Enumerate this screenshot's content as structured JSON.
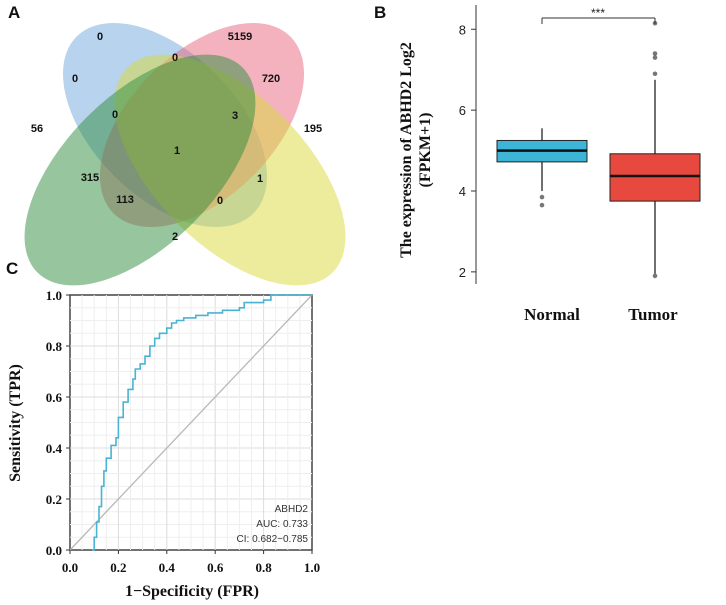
{
  "panels": {
    "a": "A",
    "b": "B",
    "c": "C"
  },
  "venn": {
    "sets": [
      {
        "name": "blue-set",
        "color": "#6fa8dc"
      },
      {
        "name": "pink-set",
        "color": "#e8657d"
      },
      {
        "name": "yellow-set",
        "color": "#d9d93a"
      },
      {
        "name": "green-set",
        "color": "#2e8b3e"
      }
    ],
    "counts": {
      "blue_only": "0",
      "pink_only": "5159",
      "green_only": "56",
      "yellow_only": "195",
      "blue_pink": "0",
      "blue_green": "0",
      "pink_yellow": "720",
      "blue_pink_green": "0",
      "blue_pink_yellow": "3",
      "all_four": "1",
      "pink_green": "315",
      "blue_yellow": "1",
      "pink_green_yellow": "113",
      "blue_green_yellow": "0",
      "green_yellow": "2"
    }
  },
  "chart_data": [
    {
      "type": "box",
      "title": "",
      "ylabel_line1": "The expression of ABHD2 Log2",
      "ylabel_line2": "(FPKM+1)",
      "xlabel": "",
      "ylim": [
        1.7,
        8.6
      ],
      "yticks": [
        "2",
        "4",
        "6",
        "8"
      ],
      "significance": "***",
      "groups": [
        {
          "name": "Normal",
          "color": "#3db5d6",
          "q1": 4.72,
          "median": 5.0,
          "q3": 5.25,
          "whisker_low": 4.0,
          "whisker_high": 5.55,
          "outliers": [
            3.85,
            3.65
          ]
        },
        {
          "name": "Tumor",
          "color": "#e8493f",
          "q1": 3.75,
          "median": 4.37,
          "q3": 4.92,
          "whisker_low": 1.95,
          "whisker_high": 6.75,
          "outliers": [
            6.9,
            7.3,
            7.4,
            8.15,
            1.9
          ]
        }
      ]
    },
    {
      "type": "line",
      "title": "",
      "xlabel": "1−Specificity (FPR)",
      "ylabel": "Sensitivity (TPR)",
      "xlim": [
        0,
        1
      ],
      "ylim": [
        0,
        1
      ],
      "xticks": [
        "0.0",
        "0.2",
        "0.4",
        "0.6",
        "0.8",
        "1.0"
      ],
      "yticks": [
        "0.0",
        "0.2",
        "0.4",
        "0.6",
        "0.8",
        "1.0"
      ],
      "legend": {
        "name": "ABHD2",
        "auc": "AUC: 0.733",
        "ci": "CI: 0.682−0.785"
      },
      "series": [
        {
          "name": "ROC",
          "color": "#4ab3d4",
          "x": [
            0.09,
            0.1,
            0.1,
            0.11,
            0.11,
            0.12,
            0.12,
            0.13,
            0.13,
            0.14,
            0.14,
            0.15,
            0.15,
            0.17,
            0.17,
            0.19,
            0.19,
            0.2,
            0.2,
            0.22,
            0.22,
            0.24,
            0.24,
            0.26,
            0.26,
            0.27,
            0.27,
            0.29,
            0.29,
            0.31,
            0.31,
            0.33,
            0.33,
            0.35,
            0.35,
            0.37,
            0.37,
            0.4,
            0.4,
            0.42,
            0.42,
            0.44,
            0.44,
            0.47,
            0.47,
            0.52,
            0.52,
            0.57,
            0.57,
            0.63,
            0.63,
            0.7,
            0.7,
            0.72,
            0.72,
            0.8,
            0.8,
            0.83,
            0.83,
            1.0
          ],
          "y": [
            0.0,
            0.0,
            0.05,
            0.05,
            0.11,
            0.11,
            0.17,
            0.17,
            0.25,
            0.25,
            0.31,
            0.31,
            0.36,
            0.36,
            0.41,
            0.41,
            0.44,
            0.44,
            0.52,
            0.52,
            0.58,
            0.58,
            0.63,
            0.63,
            0.67,
            0.67,
            0.71,
            0.71,
            0.73,
            0.73,
            0.76,
            0.76,
            0.8,
            0.8,
            0.83,
            0.83,
            0.85,
            0.85,
            0.87,
            0.87,
            0.89,
            0.89,
            0.9,
            0.9,
            0.91,
            0.91,
            0.92,
            0.92,
            0.93,
            0.93,
            0.94,
            0.94,
            0.95,
            0.95,
            0.97,
            0.97,
            0.98,
            0.98,
            1.0,
            1.0
          ]
        },
        {
          "name": "diagonal",
          "color": "#b8b8b8",
          "x": [
            0,
            1
          ],
          "y": [
            0,
            1
          ]
        }
      ]
    }
  ]
}
